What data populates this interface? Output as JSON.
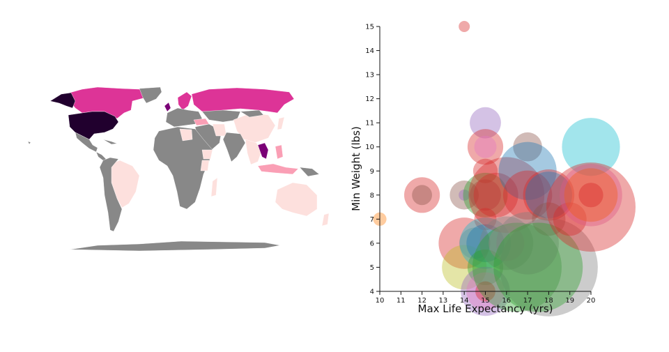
{
  "map": {
    "colors": {
      "no_data": "#888888",
      "level_1": "#fde0dd",
      "level_2": "#fa9fb5",
      "level_3": "#dd3497",
      "level_4": "#7a0177",
      "level_5": "#21002e"
    }
  },
  "chart_data": {
    "type": "scatter",
    "title": "",
    "xlabel": "Max Life Expectancy (yrs)",
    "ylabel": "Min Weight (lbs)",
    "xlim": [
      10,
      20
    ],
    "ylim": [
      4,
      15
    ],
    "xticks": [
      "10",
      "11",
      "12",
      "13",
      "14",
      "15",
      "16",
      "17",
      "18",
      "19",
      "20"
    ],
    "yticks": [
      "4",
      "5",
      "6",
      "7",
      "8",
      "9",
      "10",
      "11",
      "12",
      "13",
      "14",
      "15"
    ],
    "grid": false,
    "legend": "none",
    "points": [
      {
        "x": 14,
        "y": 15,
        "size": 0.25,
        "color": "#d62728"
      },
      {
        "x": 10,
        "y": 7,
        "size": 0.3,
        "color": "#ff7f0e"
      },
      {
        "x": 12,
        "y": 8,
        "size": 0.8,
        "color": "#d62728"
      },
      {
        "x": 12,
        "y": 8,
        "size": 0.45,
        "color": "#8c564b"
      },
      {
        "x": 14,
        "y": 8,
        "size": 0.65,
        "color": "#8c564b"
      },
      {
        "x": 14,
        "y": 8,
        "size": 0.25,
        "color": "#9467bd"
      },
      {
        "x": 14,
        "y": 6,
        "size": 1.15,
        "color": "#d62728"
      },
      {
        "x": 14,
        "y": 5,
        "size": 1.0,
        "color": "#bcbd22"
      },
      {
        "x": 14.5,
        "y": 6,
        "size": 0.7,
        "color": "#7f7f7f"
      },
      {
        "x": 15,
        "y": 11,
        "size": 0.7,
        "color": "#9467bd"
      },
      {
        "x": 15,
        "y": 10,
        "size": 0.8,
        "color": "#d62728"
      },
      {
        "x": 15,
        "y": 10,
        "size": 0.5,
        "color": "#e377c2"
      },
      {
        "x": 15,
        "y": 9,
        "size": 0.55,
        "color": "#d62728"
      },
      {
        "x": 15,
        "y": 8,
        "size": 1.0,
        "color": "#2ca02c"
      },
      {
        "x": 15,
        "y": 8,
        "size": 0.7,
        "color": "#8c564b"
      },
      {
        "x": 15,
        "y": 7,
        "size": 0.5,
        "color": "#d62728"
      },
      {
        "x": 15,
        "y": 6,
        "size": 1.15,
        "color": "#17becf"
      },
      {
        "x": 15,
        "y": 6,
        "size": 0.85,
        "color": "#1f77b4"
      },
      {
        "x": 15,
        "y": 5,
        "size": 0.8,
        "color": "#2ca02c"
      },
      {
        "x": 15,
        "y": 4,
        "size": 1.1,
        "color": "#9467bd"
      },
      {
        "x": 15,
        "y": 4,
        "size": 0.85,
        "color": "#e377c2"
      },
      {
        "x": 15,
        "y": 4,
        "size": 0.45,
        "color": "#d62728"
      },
      {
        "x": 15.5,
        "y": 8,
        "size": 1.0,
        "color": "#d62728"
      },
      {
        "x": 16,
        "y": 8,
        "size": 1.7,
        "color": "#d62728"
      },
      {
        "x": 16,
        "y": 6,
        "size": 1.2,
        "color": "#7f7f7f"
      },
      {
        "x": 16,
        "y": 6,
        "size": 0.8,
        "color": "#e377c2"
      },
      {
        "x": 16.5,
        "y": 5,
        "size": 2.0,
        "color": "#2ca02c"
      },
      {
        "x": 17,
        "y": 10,
        "size": 0.65,
        "color": "#8c564b"
      },
      {
        "x": 17,
        "y": 9,
        "size": 1.3,
        "color": "#1f77b4"
      },
      {
        "x": 17,
        "y": 8,
        "size": 1.1,
        "color": "#d62728"
      },
      {
        "x": 17,
        "y": 6,
        "size": 1.4,
        "color": "#7f7f7f"
      },
      {
        "x": 18,
        "y": 8,
        "size": 1.15,
        "color": "#d62728"
      },
      {
        "x": 18,
        "y": 8,
        "size": 1.05,
        "color": "#1f77b4"
      },
      {
        "x": 18,
        "y": 7,
        "size": 0.75,
        "color": "#8c564b"
      },
      {
        "x": 18,
        "y": 5,
        "size": 2.2,
        "color": "#7f7f7f"
      },
      {
        "x": 17.5,
        "y": 5,
        "size": 2.0,
        "color": "#2ca02c"
      },
      {
        "x": 19,
        "y": 7,
        "size": 0.75,
        "color": "#d62728"
      },
      {
        "x": 20,
        "y": 10,
        "size": 1.3,
        "color": "#17becf"
      },
      {
        "x": 20,
        "y": 8,
        "size": 1.4,
        "color": "#e377c2"
      },
      {
        "x": 20,
        "y": 8,
        "size": 1.2,
        "color": "#ff7f0e"
      },
      {
        "x": 20,
        "y": 7.5,
        "size": 2.0,
        "color": "#d62728"
      },
      {
        "x": 20,
        "y": 8,
        "size": 0.55,
        "color": "#d62728"
      }
    ]
  }
}
